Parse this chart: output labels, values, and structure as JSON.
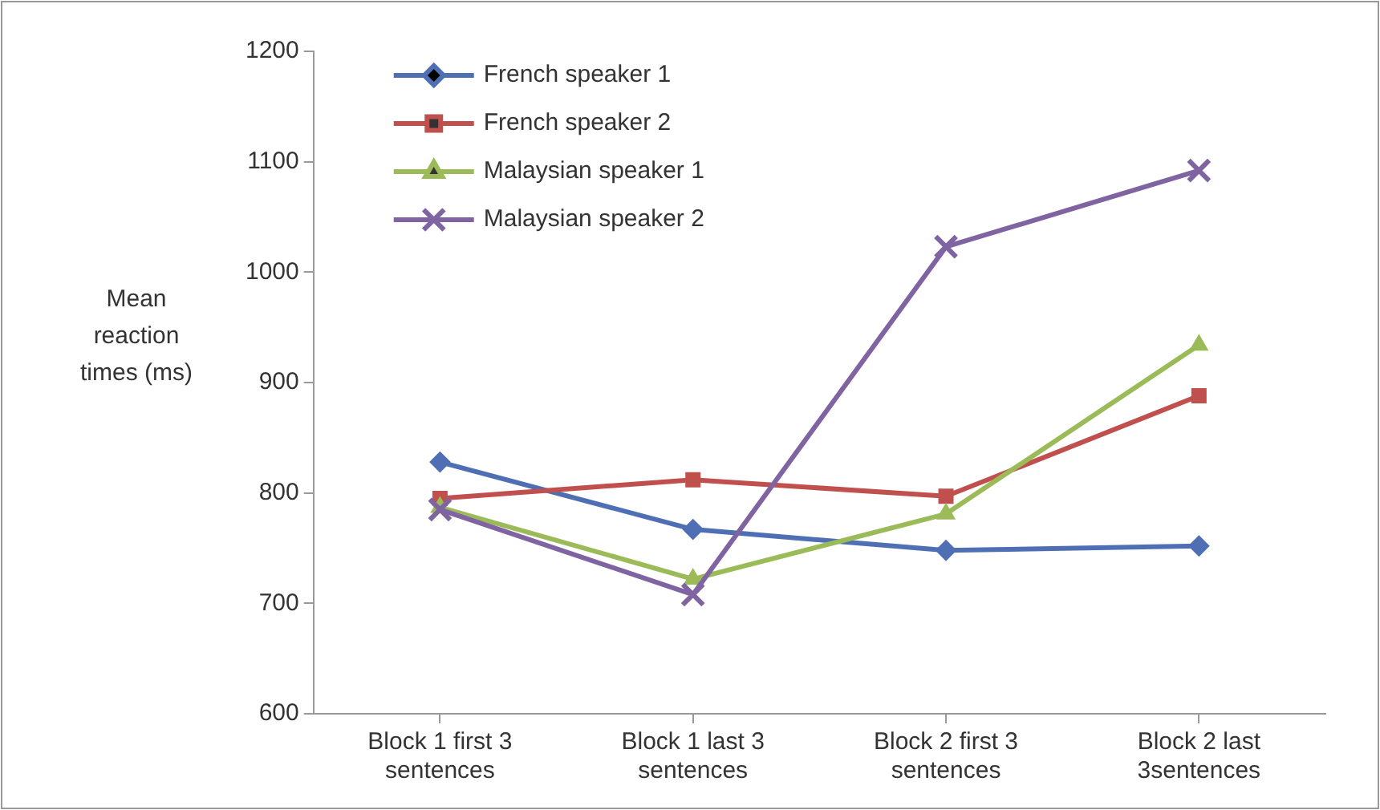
{
  "chart_data": {
    "type": "line",
    "ylabel": "Mean reaction times (ms)",
    "categories": [
      "Block 1 first 3 sentences",
      "Block 1 last 3 sentences",
      "Block 2 first 3 sentences",
      "Block 2 last 3sentences"
    ],
    "series": [
      {
        "name": "French speaker 1",
        "color": "#4f6fb5",
        "marker": "diamond",
        "values": [
          828,
          767,
          748,
          752
        ]
      },
      {
        "name": "French speaker 2",
        "color": "#c0504d",
        "marker": "square",
        "values": [
          795,
          812,
          797,
          888
        ]
      },
      {
        "name": "Malaysian speaker 1",
        "color": "#9bbb59",
        "marker": "triangle",
        "values": [
          787,
          722,
          781,
          934
        ]
      },
      {
        "name": "Malaysian speaker 2",
        "color": "#8064a2",
        "marker": "cross",
        "values": [
          785,
          708,
          1023,
          1092
        ]
      }
    ],
    "ylim": [
      600,
      1200
    ],
    "yticks": [
      600,
      700,
      800,
      900,
      1000,
      1100,
      1200
    ],
    "grid": false,
    "legend": "top left",
    "line_style": "solid"
  }
}
